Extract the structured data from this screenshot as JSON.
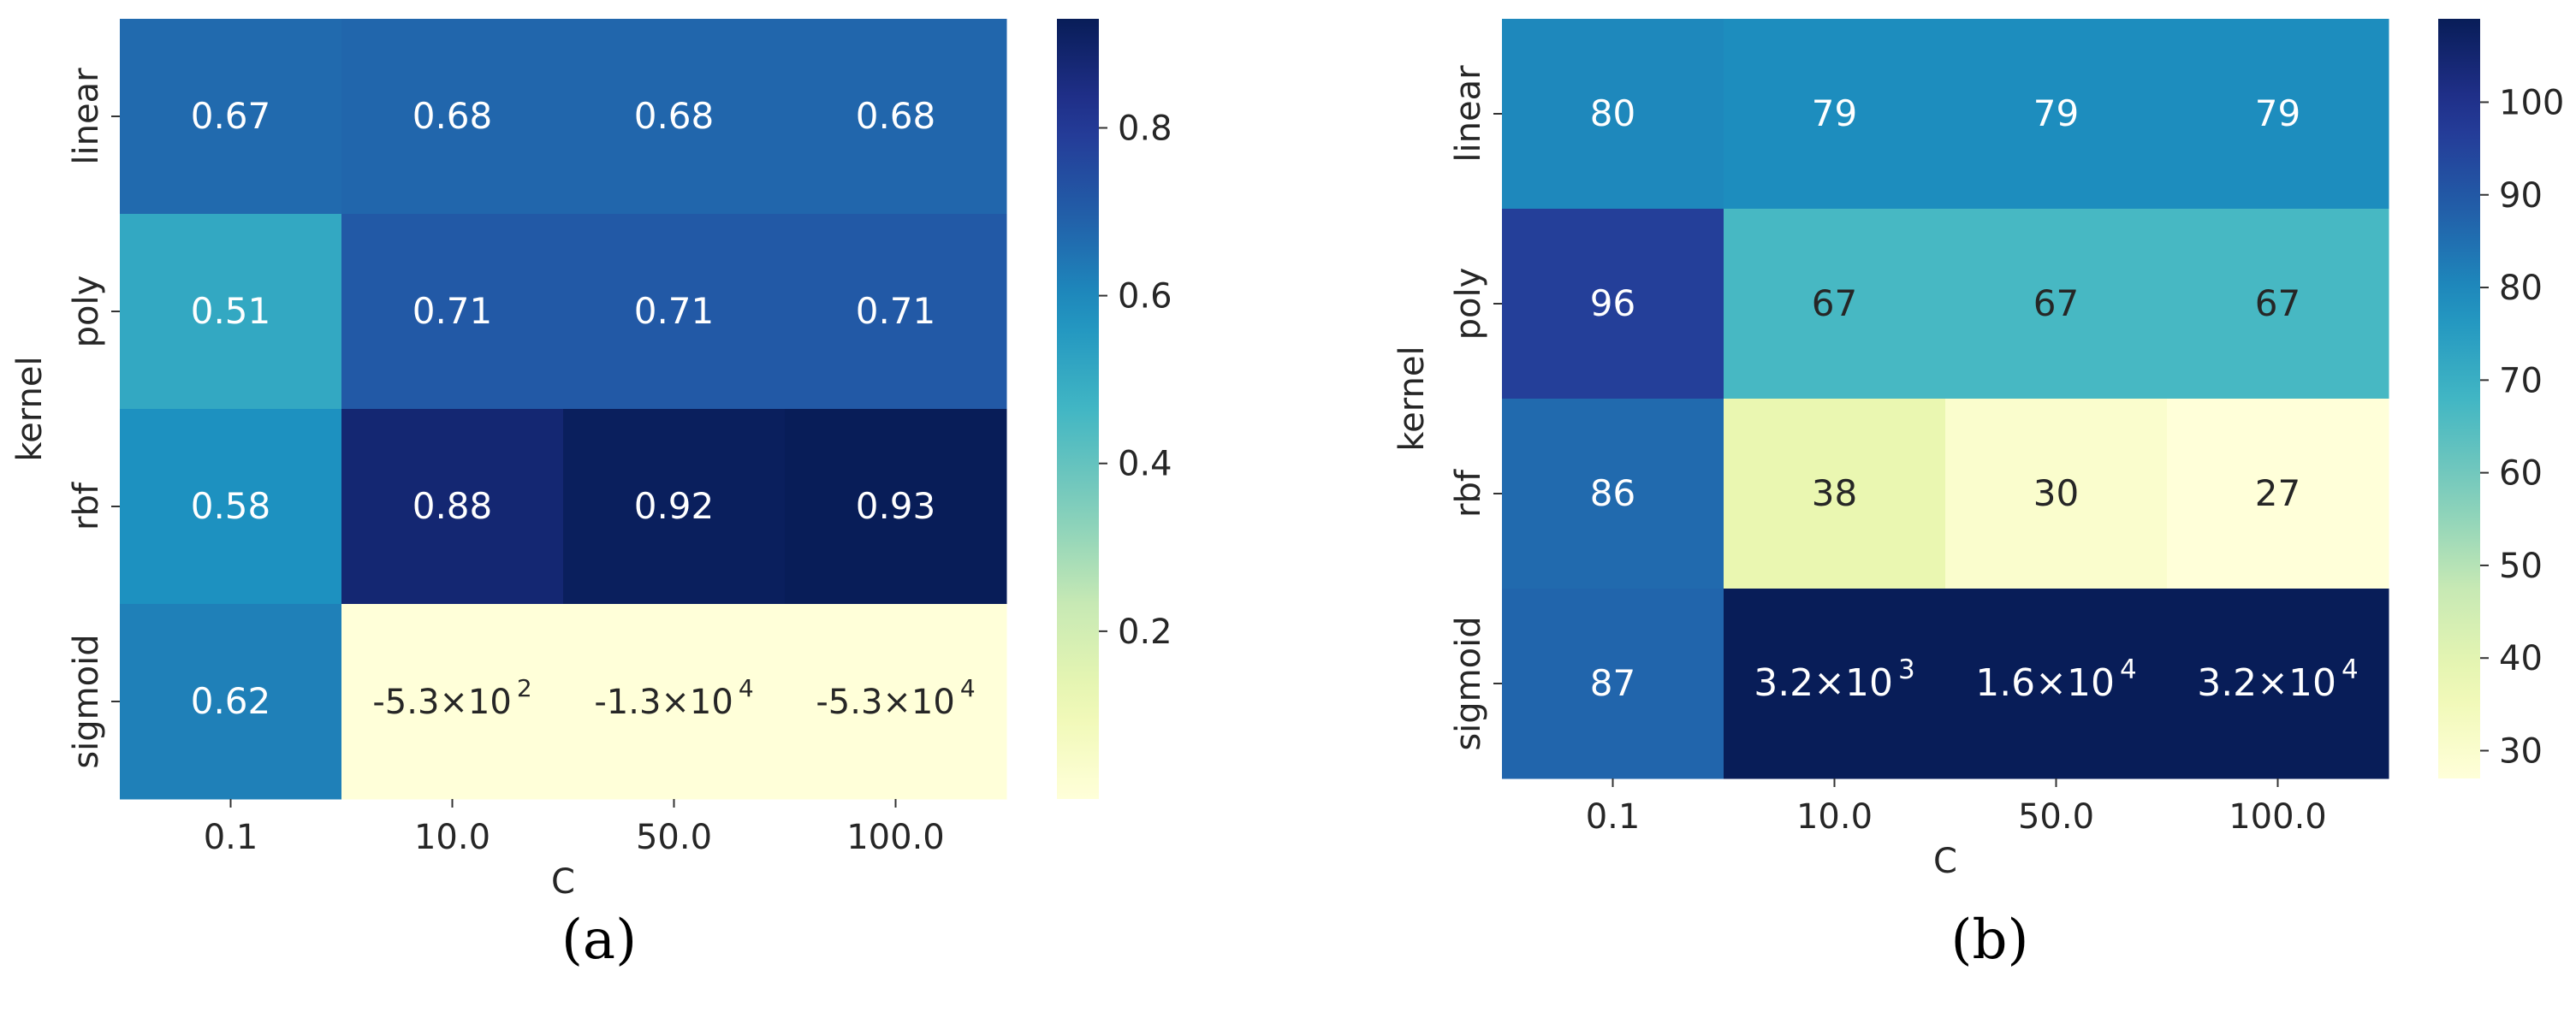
{
  "chart_data": [
    {
      "type": "heatmap",
      "panel_label": "(a)",
      "panel_letter": "a",
      "xlabel": "C",
      "ylabel": "kernel",
      "x_categories": [
        "0.1",
        "10.0",
        "50.0",
        "100.0"
      ],
      "y_categories": [
        "linear",
        "poly",
        "rbf",
        "sigmoid"
      ],
      "values": [
        [
          0.67,
          0.68,
          0.68,
          0.68
        ],
        [
          0.51,
          0.71,
          0.71,
          0.71
        ],
        [
          0.58,
          0.88,
          0.92,
          0.93
        ],
        [
          0.62,
          -530,
          -13000,
          -53000
        ]
      ],
      "cell_labels": [
        [
          "0.67",
          "0.68",
          "0.68",
          "0.68"
        ],
        [
          "0.51",
          "0.71",
          "0.71",
          "0.71"
        ],
        [
          "0.58",
          "0.88",
          "0.92",
          "0.93"
        ],
        [
          "0.62",
          "-5.3×10^2",
          "-1.3×10^4",
          "-5.3×10^4"
        ]
      ],
      "colorbar": {
        "vmin": 0,
        "vmax": 0.93,
        "ticks": [
          0.2,
          0.4,
          0.6,
          0.8
        ],
        "tick_labels": [
          "0.2",
          "0.4",
          "0.6",
          "0.8"
        ]
      },
      "colormap": "YlGnBu"
    },
    {
      "type": "heatmap",
      "panel_label": "(b)",
      "panel_letter": "b",
      "xlabel": "C",
      "ylabel": "kernel",
      "x_categories": [
        "0.1",
        "10.0",
        "50.0",
        "100.0"
      ],
      "y_categories": [
        "linear",
        "poly",
        "rbf",
        "sigmoid"
      ],
      "values": [
        [
          80,
          79,
          79,
          79
        ],
        [
          96,
          67,
          67,
          67
        ],
        [
          86,
          38,
          30,
          27
        ],
        [
          87,
          3200,
          16000,
          32000
        ]
      ],
      "cell_labels": [
        [
          "80",
          "79",
          "79",
          "79"
        ],
        [
          "96",
          "67",
          "67",
          "67"
        ],
        [
          "86",
          "38",
          "30",
          "27"
        ],
        [
          "87",
          "3.2×10^3",
          "1.6×10^4",
          "3.2×10^4"
        ]
      ],
      "colorbar": {
        "vmin": 27,
        "vmax": 109,
        "ticks": [
          30,
          40,
          50,
          60,
          70,
          80,
          90,
          100
        ],
        "tick_labels": [
          "30",
          "40",
          "50",
          "60",
          "70",
          "80",
          "90",
          "100"
        ]
      },
      "colormap": "YlGnBu"
    }
  ],
  "colormap_stops": [
    "#ffffd9",
    "#edf8b1",
    "#c7e9b4",
    "#7fcdbb",
    "#41b6c4",
    "#1d91c0",
    "#225ea8",
    "#253494",
    "#081d58"
  ]
}
